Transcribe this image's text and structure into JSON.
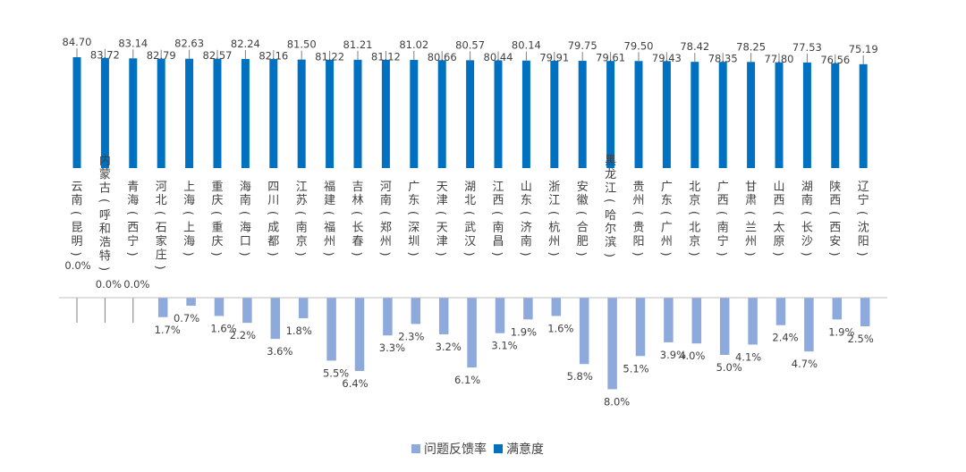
{
  "chart_data": {
    "type": "bar",
    "categories": [
      "云南（昆明）",
      "内蒙古（呼和浩特）",
      "青海（西宁）",
      "河北（石家庄）",
      "上海（上海）",
      "重庆（重庆）",
      "海南（海口）",
      "四川（成都）",
      "江苏（南京）",
      "福建（福州）",
      "吉林（长春）",
      "河南（郑州）",
      "广东（深圳）",
      "天津（天津）",
      "湖北（武汉）",
      "江西（南昌）",
      "山东（济南）",
      "浙江（杭州）",
      "安徽（合肥）",
      "黑龙江（哈尔滨）",
      "贵州（贵阳）",
      "广东（广州）",
      "北京（北京）",
      "广西（南宁）",
      "甘肃（兰州）",
      "山西（太原）",
      "湖南（长沙）",
      "陕西（西安）",
      "辽宁（沈阳）"
    ],
    "series": [
      {
        "name": "满意度",
        "color": "#0070C0",
        "values": [
          84.7,
          83.72,
          83.14,
          82.79,
          82.63,
          82.57,
          82.24,
          82.16,
          81.5,
          81.22,
          81.21,
          81.12,
          81.02,
          80.66,
          80.57,
          80.44,
          80.14,
          79.91,
          79.75,
          79.61,
          79.5,
          79.43,
          78.42,
          78.35,
          78.25,
          77.8,
          77.53,
          76.56,
          75.19
        ],
        "labels": [
          "84.70",
          "83.72",
          "83.14",
          "82.79",
          "82.63",
          "82.57",
          "82.24",
          "82.16",
          "81.50",
          "81.22",
          "81.21",
          "81.12",
          "81.02",
          "80.66",
          "80.57",
          "80.44",
          "80.14",
          "79.91",
          "79.75",
          "79.61",
          "79.50",
          "79.43",
          "78.42",
          "78.35",
          "78.25",
          "77.80",
          "77.53",
          "76.56",
          "75.19"
        ]
      },
      {
        "name": "问题反馈率",
        "color": "#8EA9DB",
        "values": [
          0.0,
          0.0,
          0.0,
          1.7,
          0.7,
          1.6,
          2.2,
          3.6,
          1.8,
          5.5,
          6.4,
          3.3,
          2.3,
          3.2,
          6.1,
          3.1,
          1.9,
          1.6,
          5.8,
          8.0,
          5.1,
          3.9,
          4.0,
          5.0,
          4.1,
          2.4,
          4.7,
          1.9,
          2.5
        ],
        "labels": [
          "0.0%",
          "0.0%",
          "0.0%",
          "1.7%",
          "0.7%",
          "1.6%",
          "2.2%",
          "3.6%",
          "1.8%",
          "5.5%",
          "6.4%",
          "3.3%",
          "2.3%",
          "3.2%",
          "6.1%",
          "3.1%",
          "1.9%",
          "1.6%",
          "5.8%",
          "8.0%",
          "5.1%",
          "3.9%",
          "4.0%",
          "5.0%",
          "4.1%",
          "2.4%",
          "4.7%",
          "1.9%",
          "2.5%"
        ]
      }
    ],
    "legend": {
      "items": [
        {
          "name": "问题反馈率",
          "color": "#8EA9DB"
        },
        {
          "name": "满意度",
          "color": "#0070C0"
        }
      ],
      "placement": "bottom"
    },
    "grid": false
  }
}
